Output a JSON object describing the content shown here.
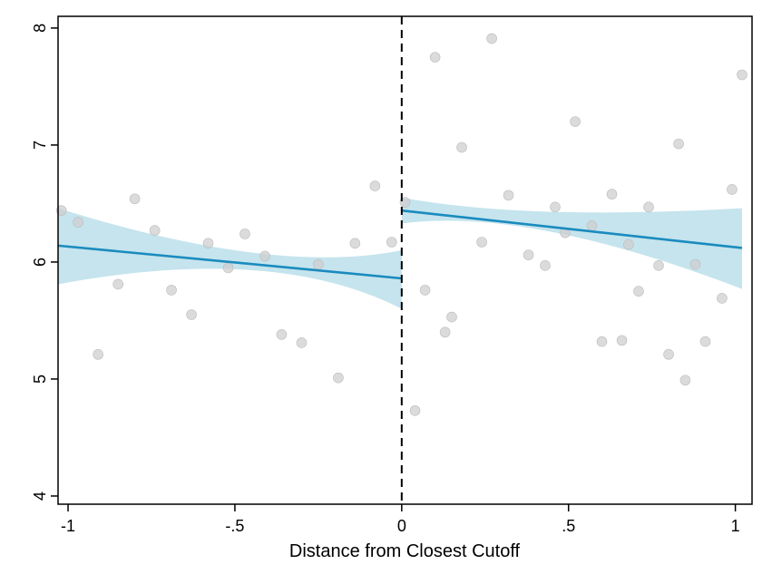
{
  "chart_data": {
    "type": "scatter",
    "title": "",
    "xlabel": "Distance from Closest Cutoff",
    "ylabel": "",
    "xlim": [
      -1.03,
      1.05
    ],
    "ylim": [
      3.93,
      8.1
    ],
    "x_ticks": [
      {
        "value": -1,
        "label": "-1"
      },
      {
        "value": -0.5,
        "label": "-.5"
      },
      {
        "value": 0,
        "label": "0"
      },
      {
        "value": 0.5,
        "label": ".5"
      },
      {
        "value": 1,
        "label": "1"
      }
    ],
    "y_ticks": [
      {
        "value": 4,
        "label": "4"
      },
      {
        "value": 5,
        "label": "5"
      },
      {
        "value": 6,
        "label": "6"
      },
      {
        "value": 7,
        "label": "7"
      },
      {
        "value": 8,
        "label": "8"
      }
    ],
    "grid": false,
    "cutoff": 0,
    "colors": {
      "points": "#cfcfcf",
      "fit_line": "#1a8bbf",
      "ci_band": "#add8e6",
      "cutoff_line": "#000000"
    },
    "points": [
      {
        "x": -1.02,
        "y": 6.44
      },
      {
        "x": -0.97,
        "y": 6.34
      },
      {
        "x": -0.91,
        "y": 5.21
      },
      {
        "x": -0.85,
        "y": 5.81
      },
      {
        "x": -0.8,
        "y": 6.54
      },
      {
        "x": -0.74,
        "y": 6.27
      },
      {
        "x": -0.69,
        "y": 5.76
      },
      {
        "x": -0.63,
        "y": 5.55
      },
      {
        "x": -0.58,
        "y": 6.16
      },
      {
        "x": -0.52,
        "y": 5.95
      },
      {
        "x": -0.47,
        "y": 6.24
      },
      {
        "x": -0.41,
        "y": 6.05
      },
      {
        "x": -0.36,
        "y": 5.38
      },
      {
        "x": -0.3,
        "y": 5.31
      },
      {
        "x": -0.25,
        "y": 5.98
      },
      {
        "x": -0.19,
        "y": 5.01
      },
      {
        "x": -0.14,
        "y": 6.16
      },
      {
        "x": -0.08,
        "y": 6.65
      },
      {
        "x": -0.03,
        "y": 6.17
      },
      {
        "x": 0.01,
        "y": 6.51
      },
      {
        "x": 0.04,
        "y": 4.73
      },
      {
        "x": 0.07,
        "y": 5.76
      },
      {
        "x": 0.1,
        "y": 7.75
      },
      {
        "x": 0.13,
        "y": 5.4
      },
      {
        "x": 0.15,
        "y": 5.53
      },
      {
        "x": 0.18,
        "y": 6.98
      },
      {
        "x": 0.24,
        "y": 6.17
      },
      {
        "x": 0.27,
        "y": 7.91
      },
      {
        "x": 0.32,
        "y": 6.57
      },
      {
        "x": 0.38,
        "y": 6.06
      },
      {
        "x": 0.43,
        "y": 5.97
      },
      {
        "x": 0.46,
        "y": 6.47
      },
      {
        "x": 0.49,
        "y": 6.25
      },
      {
        "x": 0.52,
        "y": 7.2
      },
      {
        "x": 0.57,
        "y": 6.31
      },
      {
        "x": 0.6,
        "y": 5.32
      },
      {
        "x": 0.63,
        "y": 6.58
      },
      {
        "x": 0.66,
        "y": 5.33
      },
      {
        "x": 0.68,
        "y": 6.15
      },
      {
        "x": 0.71,
        "y": 5.75
      },
      {
        "x": 0.74,
        "y": 6.47
      },
      {
        "x": 0.77,
        "y": 5.97
      },
      {
        "x": 0.8,
        "y": 5.21
      },
      {
        "x": 0.83,
        "y": 7.01
      },
      {
        "x": 0.85,
        "y": 4.99
      },
      {
        "x": 0.88,
        "y": 5.98
      },
      {
        "x": 0.91,
        "y": 5.32
      },
      {
        "x": 0.96,
        "y": 5.69
      },
      {
        "x": 0.99,
        "y": 6.62
      },
      {
        "x": 1.02,
        "y": 7.6
      }
    ],
    "fits": [
      {
        "side": "left",
        "x": [
          -1.03,
          0
        ],
        "y": [
          6.14,
          5.86
        ],
        "ci_lower": [
          5.81,
          5.6
        ],
        "ci_upper": [
          6.46,
          6.1
        ],
        "ci_mid_x": -0.38,
        "ci_mid_lower": 5.93,
        "ci_mid_upper": 6.08
      },
      {
        "side": "right",
        "x": [
          0,
          1.02
        ],
        "y": [
          6.44,
          6.12
        ],
        "ci_lower": [
          6.33,
          5.77
        ],
        "ci_upper": [
          6.55,
          6.46
        ],
        "ci_mid_x": 0.38,
        "ci_mid_lower": 6.26,
        "ci_mid_upper": 6.43
      }
    ]
  }
}
